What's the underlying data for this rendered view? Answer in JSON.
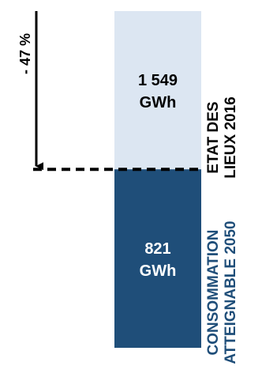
{
  "chart_data": {
    "type": "bar",
    "unit": "GWh",
    "categories": [
      "ETAT DES LIEUX 2016",
      "CONSOMMATION ATTEIGNABLE 2050"
    ],
    "values": [
      1549,
      821
    ],
    "value_labels": [
      [
        "1 549",
        "GWh"
      ],
      [
        "821",
        "GWh"
      ]
    ],
    "category_labels": [
      [
        "ETAT DES",
        "LIEUX 2016"
      ],
      [
        "CONSOMMATION",
        "ATTEIGNABLE 2050"
      ]
    ],
    "annotation": "- 47 %",
    "colors": {
      "baseline_bar": "#dce6f2",
      "target_bar": "#1f4e79",
      "baseline_label": "#000000",
      "target_label": "#1f4e79",
      "baseline_value_text": "#000000",
      "target_value_text": "#ffffff",
      "arrow": "#000000"
    }
  }
}
